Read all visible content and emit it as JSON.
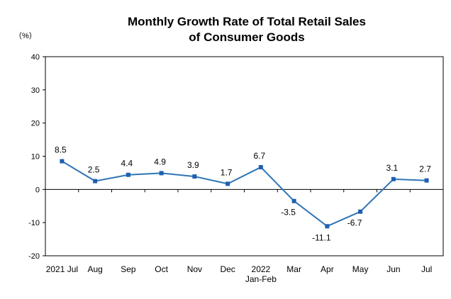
{
  "chart_data": {
    "type": "line",
    "title_lines": [
      "Monthly Growth Rate of Total Retail Sales",
      "of Consumer Goods"
    ],
    "unit_label": "（%）",
    "categories": [
      "2021 Jul",
      "Aug",
      "Sep",
      "Oct",
      "Nov",
      "Dec",
      "2022 Jan-Feb",
      "Mar",
      "Apr",
      "May",
      "Jun",
      "Jul"
    ],
    "x_tick_lines": [
      [
        "2021 Jul"
      ],
      [
        "Aug"
      ],
      [
        "Sep"
      ],
      [
        "Oct"
      ],
      [
        "Nov"
      ],
      [
        "Dec"
      ],
      [
        "2022",
        "Jan-Feb"
      ],
      [
        "Mar"
      ],
      [
        "Apr"
      ],
      [
        "May"
      ],
      [
        "Jun"
      ],
      [
        "Jul"
      ]
    ],
    "series": [
      {
        "values": [
          8.5,
          2.5,
          4.4,
          4.9,
          3.9,
          1.7,
          6.7,
          -3.5,
          -11.1,
          -6.7,
          3.1,
          2.7
        ]
      }
    ],
    "data_labels": [
      "8.5",
      "2.5",
      "4.4",
      "4.9",
      "3.9",
      "1.7",
      "6.7",
      "-3.5",
      "-11.1",
      "-6.7",
      "3.1",
      "2.7"
    ],
    "y_ticks": [
      40,
      30,
      20,
      10,
      0,
      -10,
      -20
    ],
    "ylim": [
      -20,
      40
    ],
    "grid": false,
    "legend": "none",
    "line_color": "#2E75B6",
    "marker_color": "#1F5FAF"
  }
}
